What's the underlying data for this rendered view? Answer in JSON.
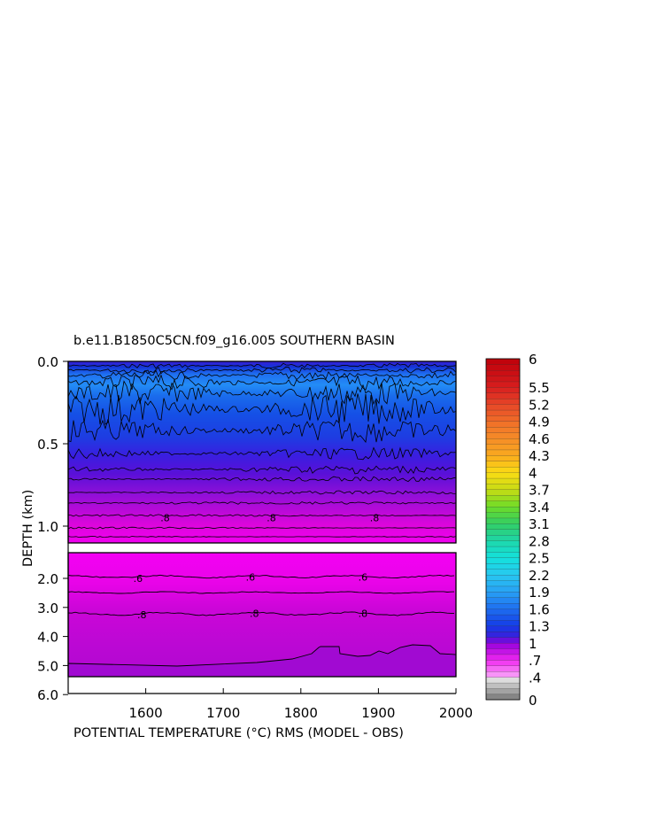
{
  "chart_data": {
    "type": "heatmap",
    "title": "b.e11.B1850C5CN.f09_g16.005 SOUTHERN BASIN",
    "xlabel": "POTENTIAL TEMPERATURE (°C) RMS (MODEL - OBS)",
    "ylabel": "DEPTH (km)",
    "xlim": [
      1500,
      2000
    ],
    "x_ticks": [
      "1600",
      "1700",
      "1800",
      "1900",
      "2000"
    ],
    "x_tick_values": [
      1600,
      1700,
      1800,
      1900,
      2000
    ],
    "upper_panel": {
      "ylim": [
        0.0,
        1.1
      ],
      "y_ticks": [
        "0.0",
        "0.5",
        "1.0"
      ],
      "y_tick_values": [
        0.0,
        0.5,
        1.0
      ],
      "contour_labels": [
        {
          "text": ".8",
          "x": 1625,
          "y": 0.95
        },
        {
          "text": ".8",
          "x": 1762,
          "y": 0.95
        },
        {
          "text": ".8",
          "x": 1895,
          "y": 0.95
        }
      ]
    },
    "lower_panel": {
      "ylim": [
        1.0,
        6.0
      ],
      "y_ticks": [
        "2.0",
        "3.0",
        "4.0",
        "5.0",
        "6.0"
      ],
      "y_tick_values": [
        2.0,
        3.0,
        4.0,
        5.0,
        6.0
      ],
      "contour_labels": [
        {
          "text": ".6",
          "x": 1590,
          "y": 2.0
        },
        {
          "text": ".6",
          "x": 1735,
          "y": 1.95
        },
        {
          "text": ".6",
          "x": 1880,
          "y": 1.95
        },
        {
          "text": ".8",
          "x": 1595,
          "y": 3.25
        },
        {
          "text": ".8",
          "x": 1740,
          "y": 3.2
        },
        {
          "text": ".8",
          "x": 1880,
          "y": 3.2
        }
      ]
    },
    "colorbar": {
      "labels": [
        "6",
        "5.5",
        "5.2",
        "4.9",
        "4.6",
        "4.3",
        "4",
        "3.7",
        "3.4",
        "3.1",
        "2.8",
        "2.5",
        "2.2",
        "1.9",
        "1.6",
        "1.3",
        "1",
        ".7",
        ".4",
        "0"
      ],
      "label_values": [
        6,
        5.5,
        5.2,
        4.9,
        4.6,
        4.3,
        4.0,
        3.7,
        3.4,
        3.1,
        2.8,
        2.5,
        2.2,
        1.9,
        1.6,
        1.3,
        1.0,
        0.7,
        0.4,
        0.0
      ],
      "min": 0,
      "max": 6
    },
    "grid": false,
    "legend": "right"
  }
}
